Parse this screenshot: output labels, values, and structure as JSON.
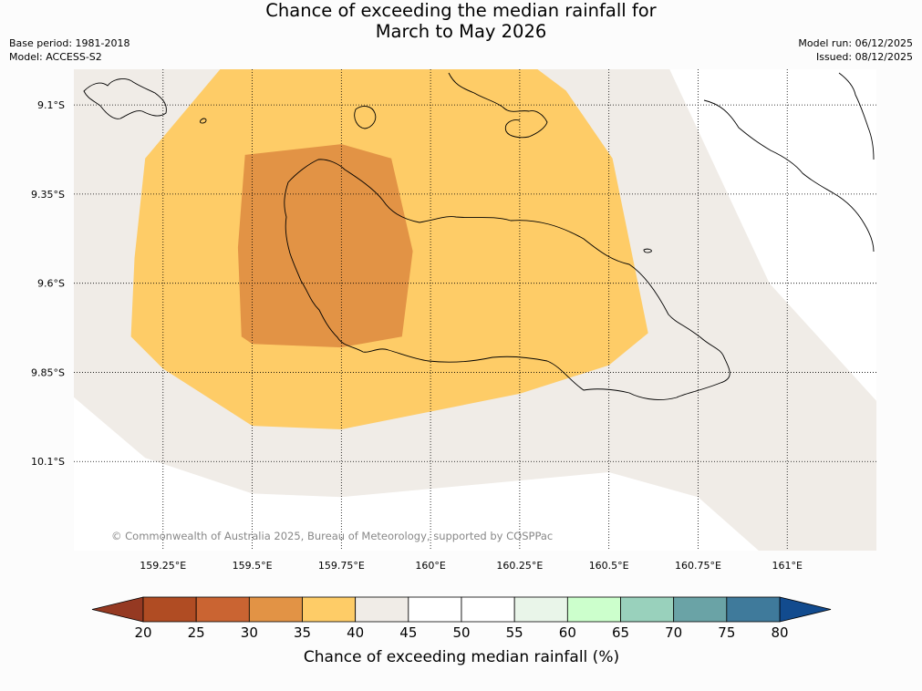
{
  "header": {
    "title_line1": "Chance of exceeding the median rainfall for",
    "title_line2": "March to May 2026",
    "base_period": "Base period: 1981-2018",
    "model": "Model: ACCESS-S2",
    "model_run": "Model run: 06/12/2025",
    "issued": "Issued: 08/12/2025"
  },
  "credit": "© Commonwealth of Australia 2025, Bureau of Meteorology, supported by COSPPac",
  "colors": {
    "land_outline": "#000000",
    "background_neutral": "#f0ece7",
    "gridline": "#000000"
  },
  "chart_data": {
    "type": "heatmap",
    "projection": "map",
    "title": "Chance of exceeding the median rainfall for March to May 2026",
    "xlim": [
      159.0,
      161.25
    ],
    "ylim": [
      -10.35,
      -9.0
    ],
    "xticks": [
      159.25,
      159.5,
      159.75,
      160.0,
      160.25,
      160.5,
      160.75,
      161.0
    ],
    "xtick_labels": [
      "159.25°E",
      "159.5°E",
      "159.75°E",
      "160°E",
      "160.25°E",
      "160.5°E",
      "160.75°E",
      "161°E"
    ],
    "yticks": [
      -9.1,
      -9.35,
      -9.6,
      -9.85,
      -10.1
    ],
    "ytick_labels": [
      "9.1°S",
      "9.35°S",
      "9.6°S",
      "9.85°S",
      "10.1°S"
    ],
    "grid": true,
    "regions": [
      {
        "name": "40-45",
        "color": "#f0ece7",
        "points": [
          [
            159.0,
            -9.0
          ],
          [
            160.67,
            -9.0
          ],
          [
            160.95,
            -9.6
          ],
          [
            161.25,
            -9.93
          ],
          [
            161.25,
            -10.35
          ],
          [
            160.92,
            -10.35
          ],
          [
            160.75,
            -10.2
          ],
          [
            160.5,
            -10.13
          ],
          [
            159.75,
            -10.2
          ],
          [
            159.5,
            -10.19
          ],
          [
            159.2,
            -10.09
          ],
          [
            159.0,
            -9.92
          ]
        ]
      },
      {
        "name": "35-40",
        "color": "#fecc67",
        "points": [
          [
            159.41,
            -9.0
          ],
          [
            159.77,
            -9.0
          ],
          [
            160.0,
            -9.0
          ],
          [
            160.3,
            -9.0
          ],
          [
            160.38,
            -9.06
          ],
          [
            160.51,
            -9.25
          ],
          [
            160.61,
            -9.74
          ],
          [
            160.5,
            -9.83
          ],
          [
            160.25,
            -9.91
          ],
          [
            160.0,
            -9.96
          ],
          [
            159.75,
            -10.01
          ],
          [
            159.5,
            -10.0
          ],
          [
            159.25,
            -9.84
          ],
          [
            159.16,
            -9.75
          ],
          [
            159.17,
            -9.53
          ],
          [
            159.2,
            -9.25
          ]
        ]
      },
      {
        "name": "30-35",
        "color": "#e29345",
        "points": [
          [
            159.48,
            -9.24
          ],
          [
            159.75,
            -9.21
          ],
          [
            159.89,
            -9.25
          ],
          [
            159.95,
            -9.51
          ],
          [
            159.92,
            -9.75
          ],
          [
            159.75,
            -9.78
          ],
          [
            159.5,
            -9.77
          ],
          [
            159.47,
            -9.75
          ],
          [
            159.46,
            -9.5
          ]
        ]
      }
    ],
    "colorbar": {
      "label": "Chance of exceeding median rainfall (%)",
      "ticks": [
        "20",
        "25",
        "30",
        "35",
        "40",
        "45",
        "50",
        "55",
        "60",
        "65",
        "70",
        "75",
        "80"
      ],
      "colors": [
        "#b04c23",
        "#ca6432",
        "#e29345",
        "#fecc67",
        "#f0ece7",
        "#ffffff",
        "#ffffff",
        "#e9f5e9",
        "#ccffcc",
        "#99d1bc",
        "#6aa3a6",
        "#3f7a9b"
      ],
      "under_color": "#953922",
      "over_color": "#124b8e"
    }
  }
}
